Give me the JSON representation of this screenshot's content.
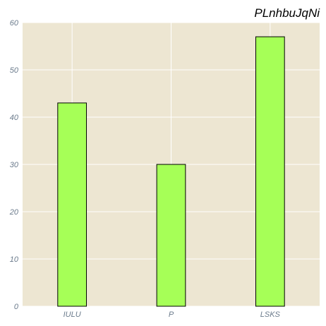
{
  "chart_data": {
    "type": "bar",
    "title": "PLnhbuJqNi",
    "xlabel": "",
    "ylabel": "",
    "categories": [
      "IULU",
      "P",
      "LSKS"
    ],
    "values": [
      43,
      30,
      57
    ],
    "ylim": [
      0,
      60
    ],
    "yticks": [
      0,
      10,
      20,
      30,
      40,
      50,
      60
    ],
    "grid": true,
    "colors": {
      "bar_fill": "#a6ff57",
      "bar_edge": "#000000",
      "plot_background": "#ede6d2",
      "grid": "#ffffff",
      "tick_text": "#6b7b8c"
    }
  }
}
